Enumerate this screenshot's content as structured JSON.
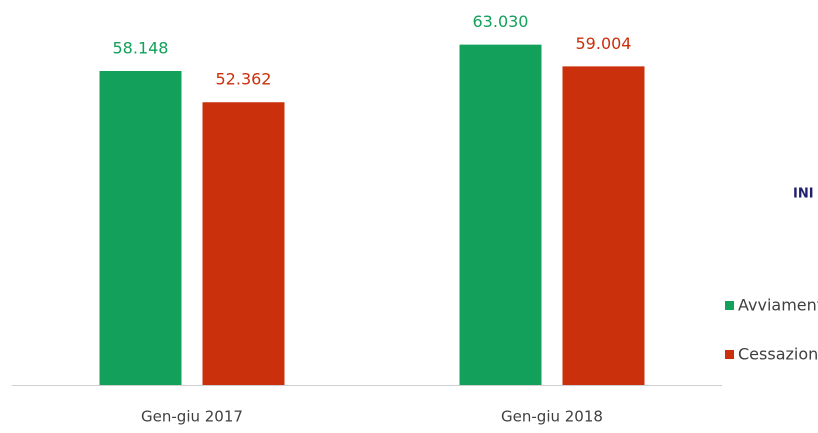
{
  "chart_data": {
    "type": "bar",
    "categories": [
      "Gen-giu 2017",
      "Gen-giu 2018"
    ],
    "series": [
      {
        "name": "Avviamenti",
        "color": "#13a05b",
        "values": [
          58148,
          63030
        ],
        "value_labels": [
          "58.148",
          "63.030"
        ]
      },
      {
        "name": "Cessazioni",
        "color": "#c9300b",
        "values": [
          52362,
          59004
        ],
        "value_labels": [
          "52.362",
          "59.004"
        ]
      }
    ],
    "ylim": [
      0,
      70000
    ],
    "annotation": "INI"
  }
}
